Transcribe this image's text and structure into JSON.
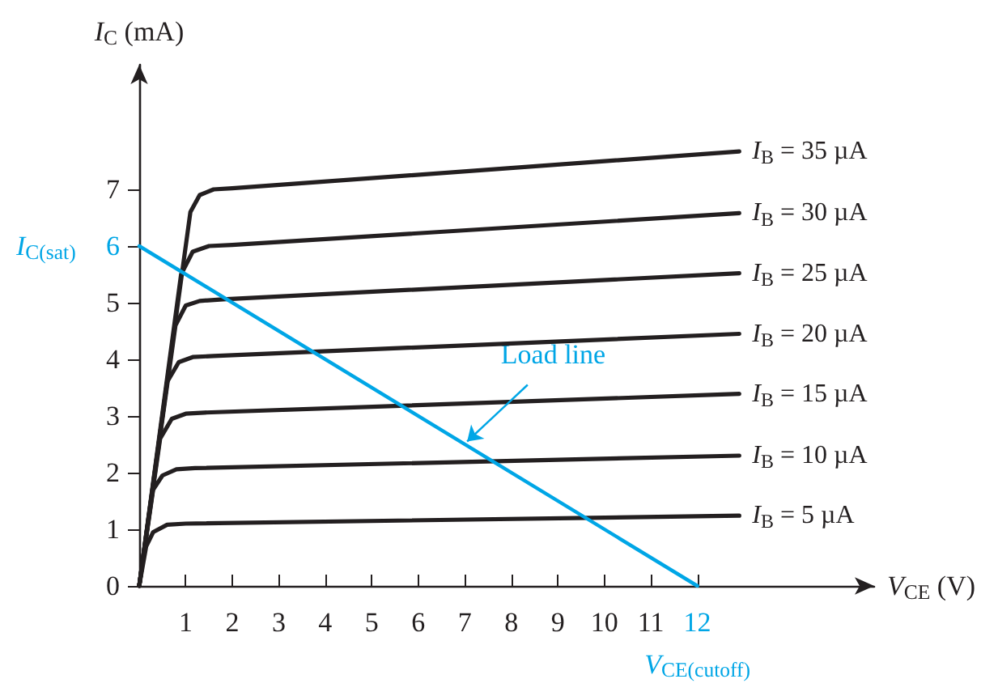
{
  "chart_data": {
    "type": "line",
    "xlabel": "V$_{CE}$ (V)",
    "ylabel": "I$_{C}$ (mA)",
    "xlim": [
      0,
      15.8
    ],
    "ylim": [
      0,
      9.2
    ],
    "xticks": [
      1,
      2,
      3,
      4,
      5,
      6,
      7,
      8,
      9,
      10,
      11,
      12
    ],
    "yticks": [
      0,
      1,
      2,
      3,
      4,
      5,
      6,
      7
    ],
    "grid": false,
    "legend": false,
    "marker": "none",
    "line_style": "solid",
    "series": [
      {
        "name": "I$_{B}$ = 35 µA",
        "color": "#231f20",
        "x": [
          0,
          1.1,
          1.3,
          1.6,
          2.0,
          12.9
        ],
        "values": [
          0,
          6.6,
          6.9,
          7.0,
          7.02,
          7.67
        ]
      },
      {
        "name": "I$_{B}$ = 30 µA",
        "color": "#231f20",
        "x": [
          0,
          0.9,
          1.15,
          1.5,
          2.0,
          12.9
        ],
        "values": [
          0,
          5.5,
          5.9,
          6.0,
          6.02,
          6.58
        ]
      },
      {
        "name": "I$_{B}$ = 25 µA",
        "color": "#231f20",
        "x": [
          0,
          0.78,
          1.0,
          1.3,
          1.8,
          12.9
        ],
        "values": [
          0,
          4.6,
          4.95,
          5.03,
          5.06,
          5.52
        ]
      },
      {
        "name": "I$_{B}$ = 20 µA",
        "color": "#231f20",
        "x": [
          0,
          0.6,
          0.85,
          1.15,
          1.6,
          12.9
        ],
        "values": [
          0,
          3.6,
          3.95,
          4.04,
          4.06,
          4.45
        ]
      },
      {
        "name": "I$_{B}$ = 15 µA",
        "color": "#231f20",
        "x": [
          0,
          0.45,
          0.7,
          1.0,
          1.4,
          12.9
        ],
        "values": [
          0,
          2.6,
          2.95,
          3.04,
          3.06,
          3.39
        ]
      },
      {
        "name": "I$_{B}$ = 10 µA",
        "color": "#231f20",
        "x": [
          0,
          0.3,
          0.5,
          0.8,
          1.2,
          12.9
        ],
        "values": [
          0,
          1.7,
          1.95,
          2.06,
          2.08,
          2.3
        ]
      },
      {
        "name": "I$_{B}$ = 5 µA",
        "color": "#231f20",
        "x": [
          0,
          0.15,
          0.3,
          0.6,
          1.0,
          12.9
        ],
        "values": [
          0,
          0.7,
          0.95,
          1.08,
          1.1,
          1.24
        ]
      },
      {
        "color": "#00a6e6",
        "x": [
          0,
          12
        ],
        "values": [
          6,
          0
        ]
      }
    ],
    "annotations": [
      {
        "text": "I$_{C(sat)}$",
        "x": 0,
        "y": 6
      },
      {
        "text": "V$_{CE(cutoff)}$",
        "x": 12,
        "y": 0
      },
      {
        "text": "Load line",
        "x": 7,
        "y": 2.5
      }
    ]
  }
}
